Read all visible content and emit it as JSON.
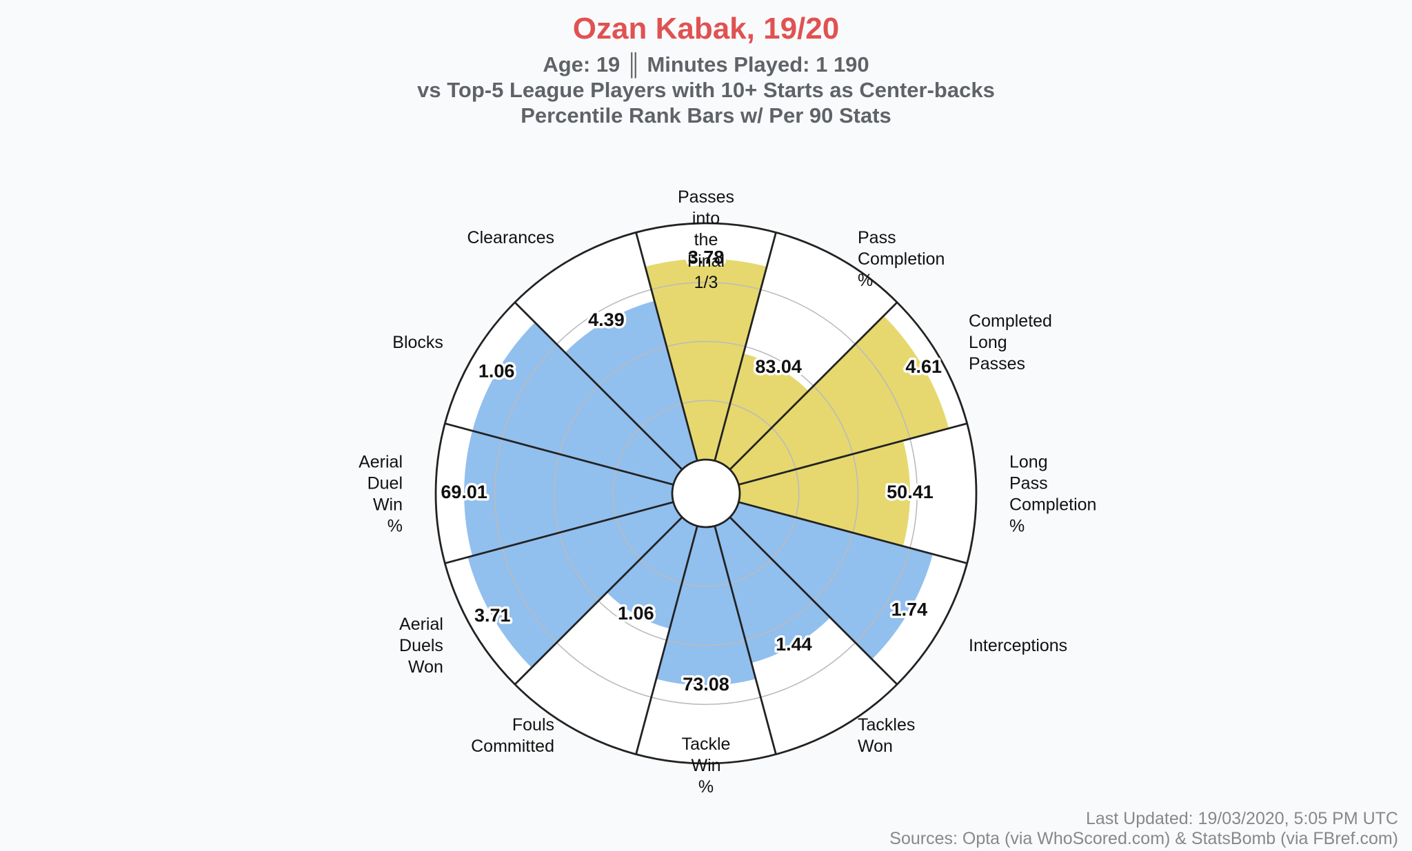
{
  "colors": {
    "title": "#e05252",
    "subtitle": "#5f6368",
    "attacking": "#e6d86e",
    "defending": "#91bfee",
    "background": "#f9fafb",
    "outline": "#222222",
    "grid": "#bbbbbb",
    "footer": "#888888"
  },
  "chart_data": {
    "type": "polar-bar",
    "title": "Ozan Kabak, 19/20",
    "subtitle_lines": [
      "Age: 19 ║ Minutes Played: 1 190",
      "vs Top-5 League Players with 10+ Starts as Center-backs",
      "Percentile Rank Bars w/ Per 90 Stats"
    ],
    "footer_lines": [
      "Last Updated: 19/03/2020, 5:05 PM UTC",
      "Sources: Opta (via WhoScored.com) & StatsBomb (via FBref.com)"
    ],
    "rlim": [
      0,
      100
    ],
    "gridlines_percentile": [
      25,
      50,
      75
    ],
    "metrics": [
      {
        "label": "Passes into the Final 1/3",
        "label_lines": [
          "Passes",
          "into",
          "the",
          "Final",
          "1/3"
        ],
        "value": "3.78",
        "percentile": 85,
        "group": "attacking"
      },
      {
        "label": "Pass Completion %",
        "label_lines": [
          "Pass",
          "Completion",
          "%"
        ],
        "value": "83.04",
        "percentile": 47,
        "group": "attacking"
      },
      {
        "label": "Completed Long Passes",
        "label_lines": [
          "Completed",
          "Long",
          "Passes"
        ],
        "value": "4.61",
        "percentile": 92,
        "group": "attacking"
      },
      {
        "label": "Long Pass Completion %",
        "label_lines": [
          "Long",
          "Pass",
          "Completion",
          "%"
        ],
        "value": "50.41",
        "percentile": 72,
        "group": "attacking"
      },
      {
        "label": "Interceptions",
        "label_lines": [
          "Interceptions"
        ],
        "value": "1.74",
        "percentile": 85,
        "group": "defending"
      },
      {
        "label": "Tackles Won",
        "label_lines": [
          "Tackles",
          "Won"
        ],
        "value": "1.44",
        "percentile": 60,
        "group": "defending"
      },
      {
        "label": "Tackle Win %",
        "label_lines": [
          "Tackle",
          "Win",
          "%"
        ],
        "value": "73.08",
        "percentile": 67,
        "group": "defending"
      },
      {
        "label": "Fouls Committed",
        "label_lines": [
          "Fouls",
          "Committed"
        ],
        "value": "1.06",
        "percentile": 45,
        "group": "defending"
      },
      {
        "label": "Aerial Duels Won",
        "label_lines": [
          "Aerial",
          "Duels",
          "Won"
        ],
        "value": "3.71",
        "percentile": 90,
        "group": "defending"
      },
      {
        "label": "Aerial Duel Win %",
        "label_lines": [
          "Aerial",
          "Duel",
          "Win",
          "%"
        ],
        "value": "69.01",
        "percentile": 88,
        "group": "defending"
      },
      {
        "label": "Blocks",
        "label_lines": [
          "Blocks"
        ],
        "value": "1.06",
        "percentile": 88,
        "group": "defending"
      },
      {
        "label": "Clearances",
        "label_lines": [
          "Clearances"
        ],
        "value": "4.39",
        "percentile": 70,
        "group": "defending"
      }
    ]
  }
}
